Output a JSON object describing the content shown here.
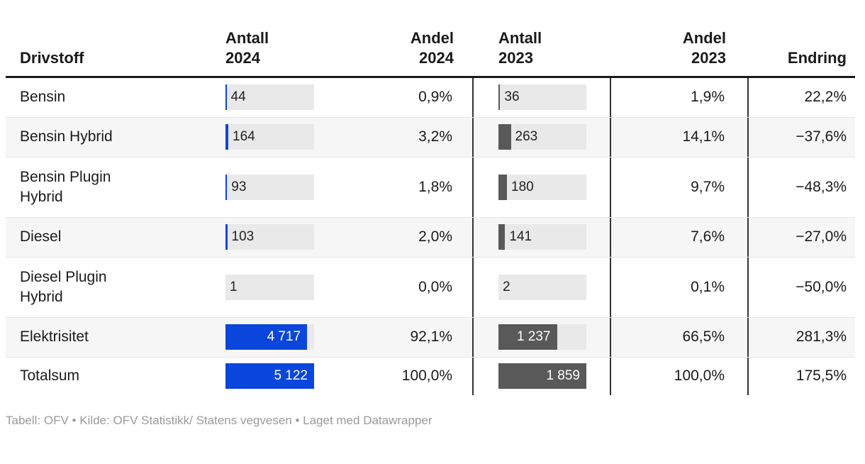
{
  "header": {
    "drivstoff": "Drivstoff",
    "antall_2024": "Antall\n2024",
    "andel_2024": "Andel\n2024",
    "antall_2023": "Antall\n2023",
    "andel_2023": "Andel\n2023",
    "endring": "Endring"
  },
  "table": {
    "max_2024": 5122,
    "max_2023": 1859,
    "track_width_2024": 125,
    "track_width_2023": 124,
    "colors": {
      "bar_2024": "#0a46dc",
      "bar_2023": "#595959",
      "track": "#e9e9e9"
    },
    "rows": [
      {
        "label": "Bensin",
        "v24": 44,
        "v24_label": "44",
        "p24": "0,9%",
        "v23": 36,
        "v23_label": "36",
        "p23": "1,9%",
        "chg": "22,2%",
        "two_line": false
      },
      {
        "label": "Bensin Hybrid",
        "v24": 164,
        "v24_label": "164",
        "p24": "3,2%",
        "v23": 263,
        "v23_label": "263",
        "p23": "14,1%",
        "chg": "−37,6%",
        "two_line": false
      },
      {
        "label": "Bensin Plugin\nHybrid",
        "v24": 93,
        "v24_label": "93",
        "p24": "1,8%",
        "v23": 180,
        "v23_label": "180",
        "p23": "9,7%",
        "chg": "−48,3%",
        "two_line": true
      },
      {
        "label": "Diesel",
        "v24": 103,
        "v24_label": "103",
        "p24": "2,0%",
        "v23": 141,
        "v23_label": "141",
        "p23": "7,6%",
        "chg": "−27,0%",
        "two_line": false
      },
      {
        "label": "Diesel Plugin\nHybrid",
        "v24": 1,
        "v24_label": "1",
        "p24": "0,0%",
        "v23": 2,
        "v23_label": "2",
        "p23": "0,1%",
        "chg": "−50,0%",
        "two_line": true
      },
      {
        "label": "Elektrisitet",
        "v24": 4717,
        "v24_label": "4 717",
        "p24": "92,1%",
        "v23": 1237,
        "v23_label": "1 237",
        "p23": "66,5%",
        "chg": "281,3%",
        "two_line": false
      },
      {
        "label": "Totalsum",
        "v24": 5122,
        "v24_label": "5 122",
        "p24": "100,0%",
        "v23": 1859,
        "v23_label": "1 859",
        "p23": "100,0%",
        "chg": "175,5%",
        "two_line": false
      }
    ]
  },
  "chart_data": {
    "type": "table",
    "columns": [
      "Drivstoff",
      "Antall 2024",
      "Andel 2024",
      "Antall 2023",
      "Andel 2023",
      "Endring"
    ],
    "rows": [
      [
        "Bensin",
        44,
        "0,9%",
        36,
        "1,9%",
        "22,2%"
      ],
      [
        "Bensin Hybrid",
        164,
        "3,2%",
        263,
        "14,1%",
        "−37,6%"
      ],
      [
        "Bensin Plugin Hybrid",
        93,
        "1,8%",
        180,
        "9,7%",
        "−48,3%"
      ],
      [
        "Diesel",
        103,
        "2,0%",
        141,
        "7,6%",
        "−27,0%"
      ],
      [
        "Diesel Plugin Hybrid",
        1,
        "0,0%",
        2,
        "0,1%",
        "−50,0%"
      ],
      [
        "Elektrisitet",
        4717,
        "92,1%",
        1237,
        "66,5%",
        "281,3%"
      ],
      [
        "Totalsum",
        5122,
        "100,0%",
        1859,
        "100,0%",
        "175,5%"
      ]
    ],
    "bar_columns": [
      {
        "column": "Antall 2024",
        "max": 5122,
        "color": "#0a46dc"
      },
      {
        "column": "Antall 2023",
        "max": 1859,
        "color": "#595959"
      }
    ],
    "layout": {
      "zebra_striping": true,
      "column_dividers": true
    }
  },
  "footer": {
    "text": "Tabell: OFV • Kilde: OFV Statistikk/ Statens vegvesen • Laget med Datawrapper"
  }
}
